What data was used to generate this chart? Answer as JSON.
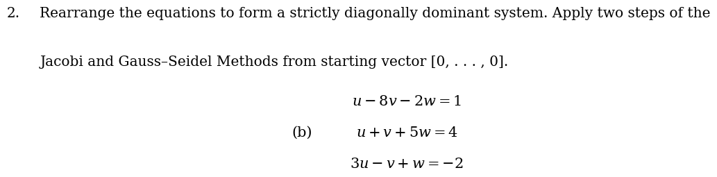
{
  "background_color": "#ffffff",
  "number": "2.",
  "main_text_line1": "Rearrange the equations to form a strictly diagonally dominant system. Apply two steps of the",
  "main_text_line2": "Jacobi and Gauss–Seidel Methods from starting vector [0, . . . , 0].",
  "label_b": "(b)",
  "eq1": "$u - 8v - 2w = 1$",
  "eq2": "$u + v + 5w = 4$",
  "eq3": "$3u - v + w = {-2}$",
  "fontsize_main": 14.5,
  "fontsize_eq": 15,
  "fontsize_number": 14.5
}
